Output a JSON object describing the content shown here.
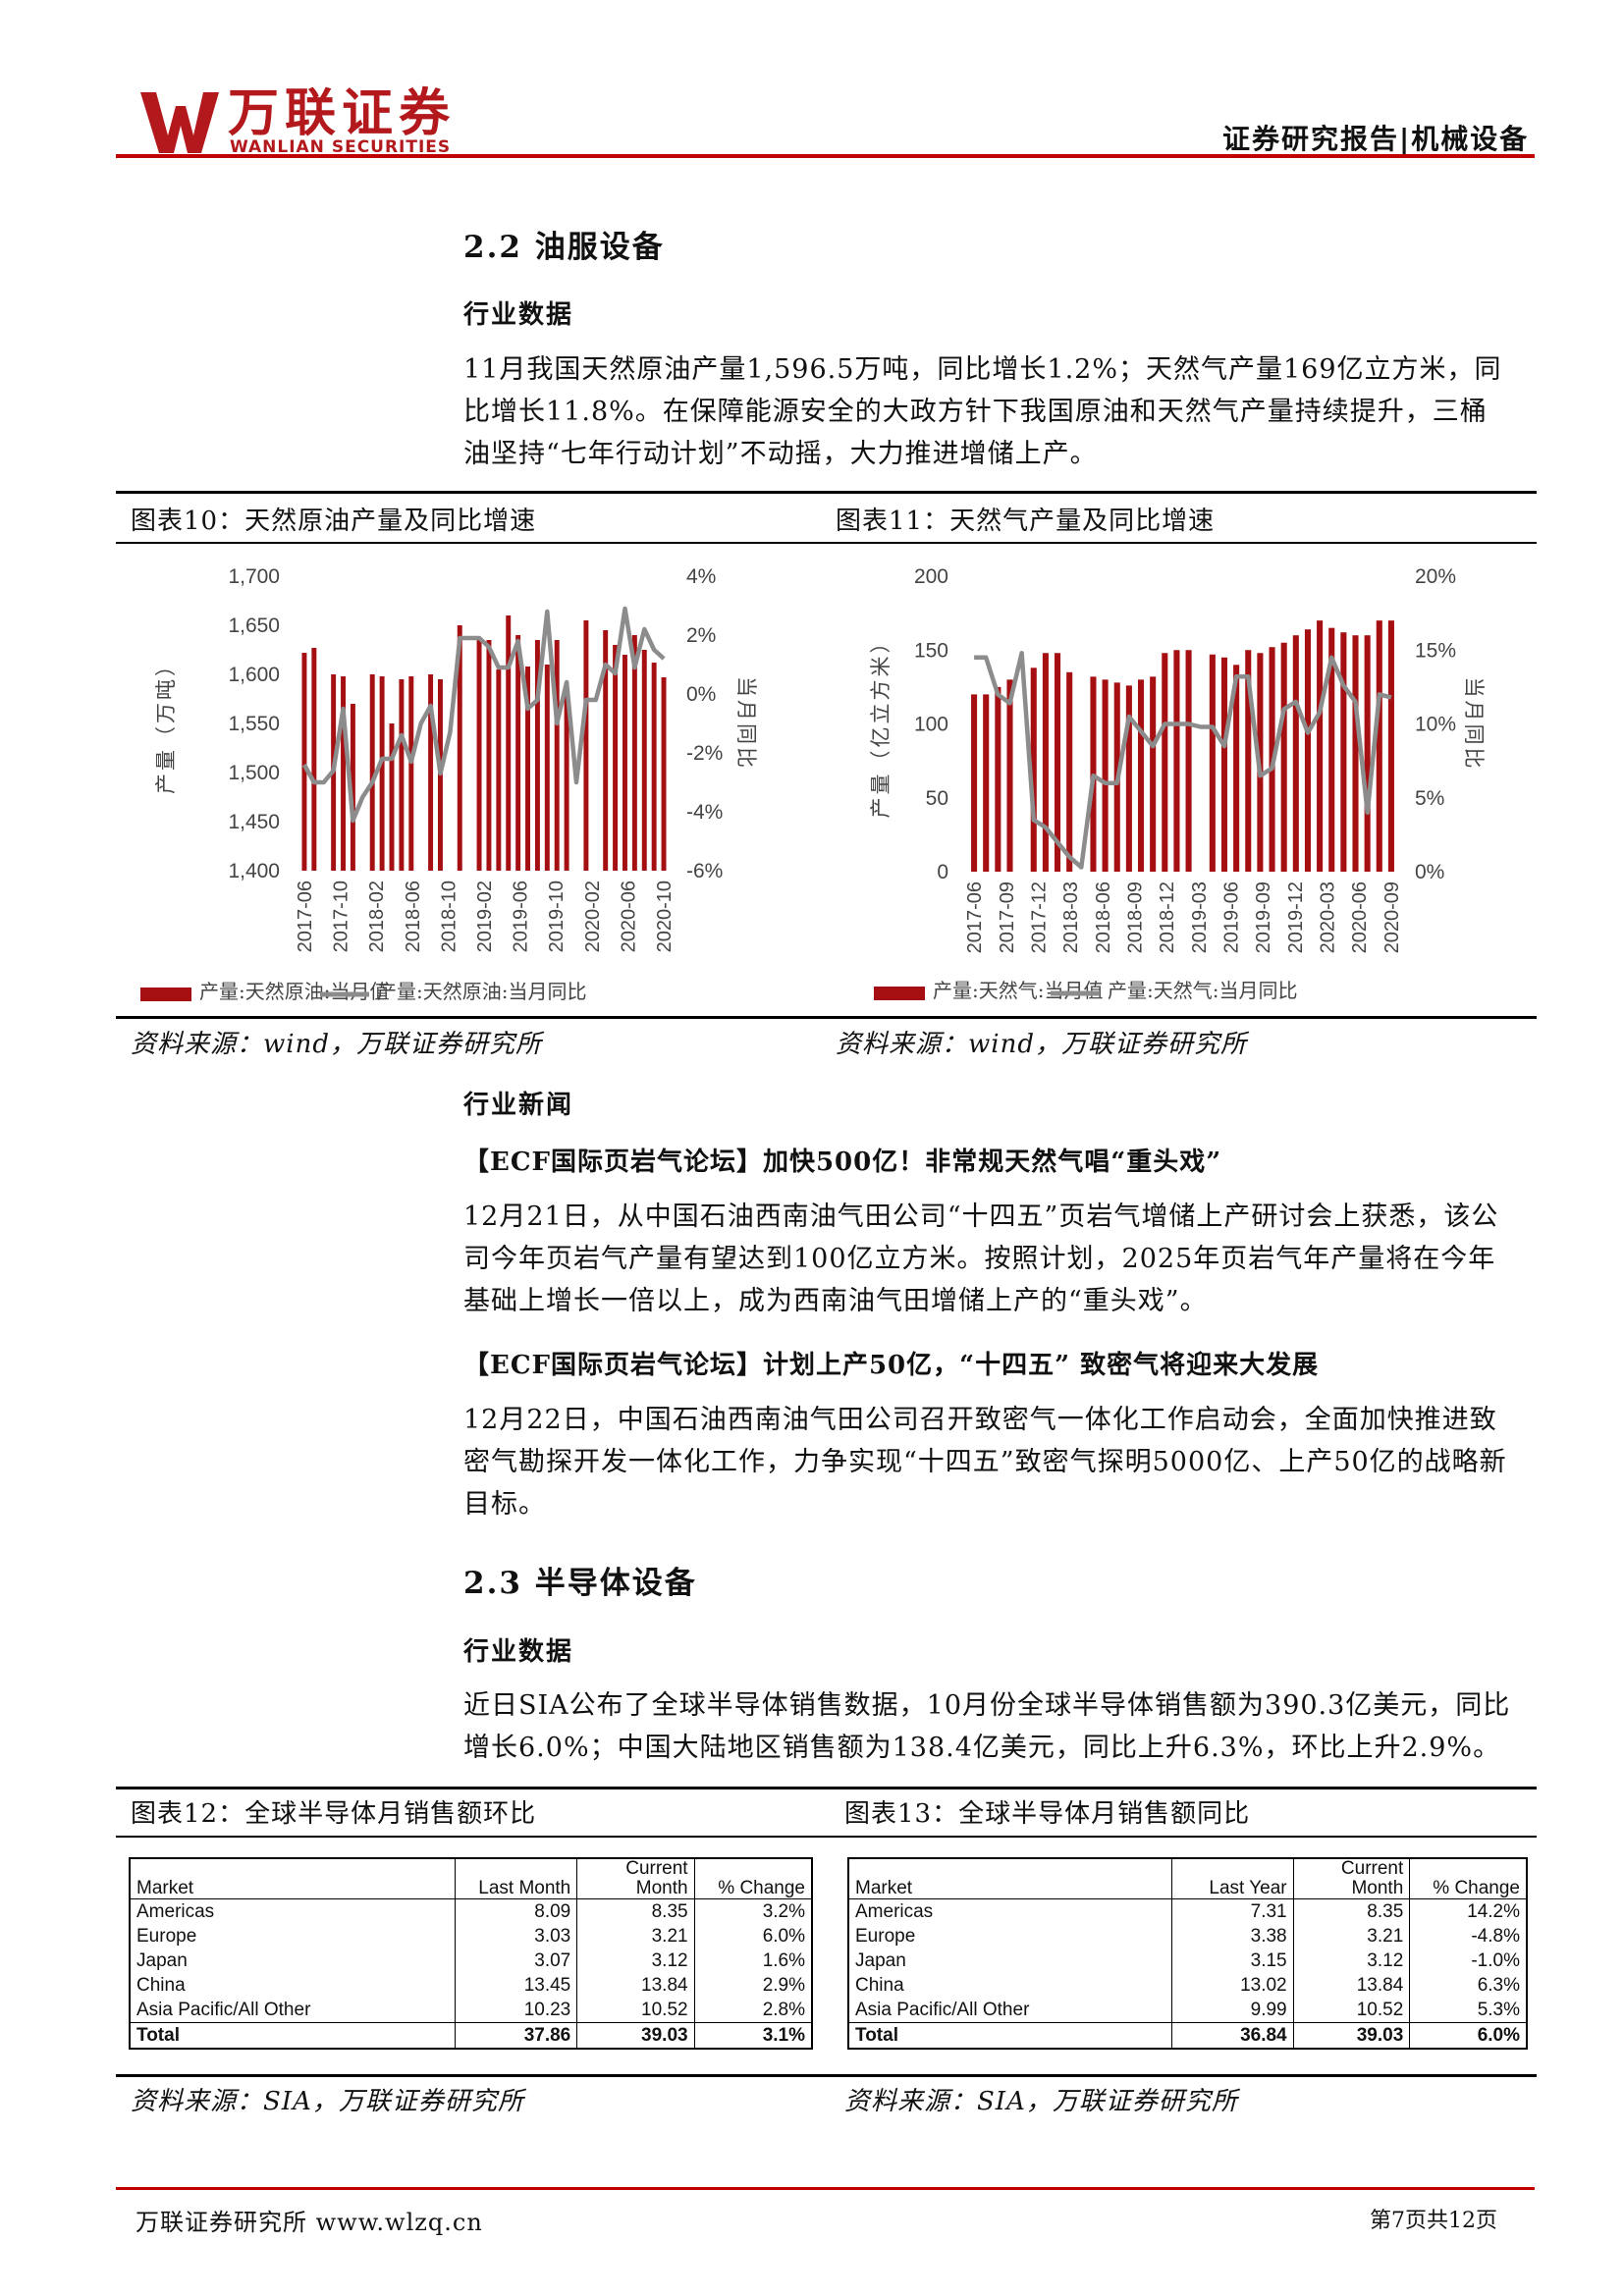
{
  "header": {
    "logo_cn": "万联证券",
    "logo_en": "WANLIAN SECURITIES",
    "report_type": "证券研究报告|机械设备"
  },
  "section_2_2": {
    "title": "2.2 油服设备",
    "sub_data": "行业数据",
    "para1": "11月我国天然原油产量1,596.5万吨，同比增长1.2%；天然气产量169亿立方米，同比增长11.8%。在保障能源安全的大政方针下我国原油和天然气产量持续提升，三桶油坚持“七年行动计划”不动摇，大力推进增储上产。",
    "sub_news": "行业新闻",
    "news1_title": "【ECF国际页岩气论坛】加快500亿！非常规天然气唱“重头戏”",
    "news1_body": "12月21日，从中国石油西南油气田公司“十四五”页岩气增储上产研讨会上获悉，该公司今年页岩气产量有望达到100亿立方米。按照计划，2025年页岩气年产量将在今年基础上增长一倍以上，成为西南油气田增储上产的“重头戏”。",
    "news2_title": "【ECF国际页岩气论坛】计划上产50亿，“十四五” 致密气将迎来大发展",
    "news2_body": "12月22日，中国石油西南油气田公司召开致密气一体化工作启动会，全面加快推进致密气勘探开发一体化工作，力争实现“十四五”致密气探明5000亿、上产50亿的战略新目标。"
  },
  "section_2_3": {
    "title": "2.3 半导体设备",
    "sub_data": "行业数据",
    "para1": "近日SIA公布了全球半导体销售数据，10月份全球半导体销售额为390.3亿美元，同比增长6.0%；中国大陆地区销售额为138.4亿美元，同比上升6.3%，环比上升2.9%。"
  },
  "figures": {
    "fig10_title": "图表10：天然原油产量及同比增速",
    "fig11_title": "图表11：天然气产量及同比增速",
    "fig12_title": "图表12：全球半导体月销售额环比",
    "fig13_title": "图表13：全球半导体月销售额同比",
    "source_wind": "资料来源：wind，万联证券研究所",
    "source_sia": "资料来源：SIA，万联证券研究所"
  },
  "chart_data": [
    {
      "type": "bar",
      "ylabel": "产量（万吨）",
      "y2label": "当月同比",
      "ylim": [
        1400,
        1700
      ],
      "y_ticks": [
        "1,700",
        "1,650",
        "1,600",
        "1,550",
        "1,500",
        "1,450",
        "1,400"
      ],
      "y2lim": [
        -6,
        4
      ],
      "y2_ticks": [
        "4%",
        "2%",
        "0%",
        "-2%",
        "-4%",
        "-6%"
      ],
      "x_ticks": [
        "2017-06",
        "2017-10",
        "2018-02",
        "2018-06",
        "2018-10",
        "2019-02",
        "2019-06",
        "2019-10",
        "2020-02",
        "2020-06",
        "2020-10"
      ],
      "series": [
        {
          "name": "产量:天然原油:当月值",
          "kind": "bar",
          "color": "#a50f12",
          "values": [
            1622,
            1627,
            null,
            1600,
            1598,
            1570,
            null,
            1600,
            1598,
            1550,
            1595,
            1598,
            null,
            1600,
            1595,
            null,
            1650,
            null,
            1638,
            1635,
            1605,
            1660,
            1640,
            1608,
            1635,
            1610,
            1635,
            1585,
            null,
            1655,
            null,
            1645,
            1630,
            1620,
            1640,
            1625,
            1612,
            1597
          ]
        },
        {
          "name": "产量:天然原油:当月同比",
          "kind": "line",
          "color": "#8c8c8c",
          "values": [
            -2.4,
            -3.0,
            -3.0,
            -2.6,
            -0.5,
            -4.3,
            -3.5,
            -3.0,
            -2.2,
            -2.2,
            -1.4,
            -2.3,
            -1.0,
            -0.4,
            -2.7,
            -1.3,
            1.9,
            1.9,
            1.9,
            1.6,
            0.9,
            0.9,
            1.8,
            -0.5,
            -0.2,
            2.8,
            -1.0,
            0.4,
            -3.0,
            -0.2,
            -0.2,
            1.0,
            0.7,
            2.9,
            0.9,
            2.2,
            1.5,
            1.2
          ]
        }
      ]
    },
    {
      "type": "bar",
      "ylabel": "产量（亿立方米）",
      "y2label": "当月同比",
      "ylim": [
        0,
        200
      ],
      "y_ticks": [
        "200",
        "150",
        "100",
        "50",
        "0"
      ],
      "y2lim": [
        0,
        20
      ],
      "y2_ticks": [
        "20%",
        "15%",
        "10%",
        "5%",
        "0%"
      ],
      "x_ticks": [
        "2017-06",
        "2017-09",
        "2017-12",
        "2018-03",
        "2018-06",
        "2018-09",
        "2018-12",
        "2019-03",
        "2019-06",
        "2019-09",
        "2019-12",
        "2020-03",
        "2020-06",
        "2020-09"
      ],
      "series": [
        {
          "name": "产量:天然气:当月值",
          "kind": "bar",
          "color": "#a50f12",
          "values": [
            120,
            120,
            125,
            130,
            null,
            138,
            148,
            148,
            135,
            null,
            132,
            130,
            128,
            126,
            130,
            132,
            148,
            150,
            150,
            null,
            147,
            145,
            140,
            150,
            148,
            152,
            155,
            160,
            164,
            170,
            165,
            162,
            160,
            160,
            170,
            170
          ]
        },
        {
          "name": "产量:天然气:当月同比",
          "kind": "line",
          "color": "#8c8c8c",
          "values": [
            14.5,
            14.5,
            12.0,
            11.4,
            14.8,
            3.5,
            3.0,
            2.0,
            1.0,
            0.3,
            6.5,
            6.0,
            6.0,
            10.5,
            9.5,
            8.5,
            10.0,
            10.0,
            10.0,
            9.8,
            9.8,
            8.5,
            13.2,
            13.2,
            6.5,
            7.0,
            11.0,
            11.5,
            9.4,
            10.8,
            14.5,
            12.6,
            11.5,
            4.0,
            12.0,
            11.8
          ]
        }
      ]
    },
    {
      "type": "table",
      "columns": [
        "Market",
        "Last Month",
        "Current Month",
        "% Change"
      ],
      "rows": [
        [
          "Americas",
          "8.09",
          "8.35",
          "3.2%"
        ],
        [
          "Europe",
          "3.03",
          "3.21",
          "6.0%"
        ],
        [
          "Japan",
          "3.07",
          "3.12",
          "1.6%"
        ],
        [
          "China",
          "13.45",
          "13.84",
          "2.9%"
        ],
        [
          "Asia Pacific/All Other",
          "10.23",
          "10.52",
          "2.8%"
        ]
      ],
      "total": [
        "Total",
        "37.86",
        "39.03",
        "3.1%"
      ]
    },
    {
      "type": "table",
      "columns": [
        "Market",
        "Last Year",
        "Current Month",
        "% Change"
      ],
      "rows": [
        [
          "Americas",
          "7.31",
          "8.35",
          "14.2%"
        ],
        [
          "Europe",
          "3.38",
          "3.21",
          "-4.8%"
        ],
        [
          "Japan",
          "3.15",
          "3.12",
          "-1.0%"
        ],
        [
          "China",
          "13.02",
          "13.84",
          "6.3%"
        ],
        [
          "Asia Pacific/All Other",
          "9.99",
          "10.52",
          "5.3%"
        ]
      ],
      "total": [
        "Total",
        "36.84",
        "39.03",
        "6.0%"
      ]
    }
  ],
  "footer": {
    "left": "万联证券研究所 www.wlzq.cn",
    "right": "第7页共12页"
  }
}
